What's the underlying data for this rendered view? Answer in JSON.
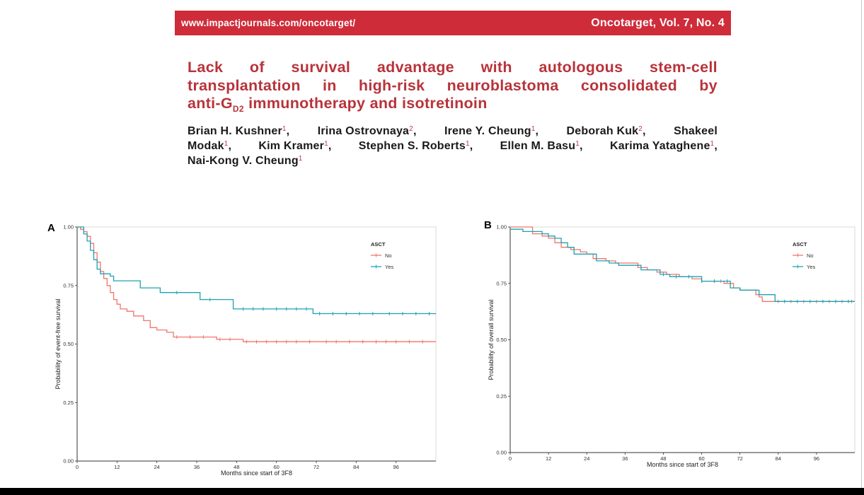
{
  "header": {
    "url": "www.impactjournals.com/oncotarget/",
    "journal": "Oncotarget, Vol. 7, No. 4"
  },
  "title": {
    "line1_words": [
      "Lack",
      "of",
      "survival",
      "advantage",
      "with",
      "autologous",
      "stem-cell"
    ],
    "line2_words": [
      "transplantation",
      "in",
      "high-risk",
      "neuroblastoma",
      "consolidated",
      "by"
    ],
    "line3_pre": "anti-G",
    "line3_sub": "D2",
    "line3_post": " immunotherapy and isotretinoin"
  },
  "authors": {
    "row1": [
      {
        "name": "Brian H. Kushner",
        "aff": "1",
        "sep": ","
      },
      {
        "name": "Irina Ostrovnaya",
        "aff": "2",
        "sep": ","
      },
      {
        "name": "Irene Y. Cheung",
        "aff": "1",
        "sep": ","
      },
      {
        "name": "Deborah Kuk",
        "aff": "2",
        "sep": ","
      },
      {
        "name": "Shakeel",
        "aff": "",
        "sep": ""
      }
    ],
    "row2": [
      {
        "name": "Modak",
        "aff": "1",
        "sep": ","
      },
      {
        "name": "Kim Kramer",
        "aff": "1",
        "sep": ","
      },
      {
        "name": "Stephen S. Roberts",
        "aff": "1",
        "sep": ","
      },
      {
        "name": "Ellen M. Basu",
        "aff": "1",
        "sep": ","
      },
      {
        "name": "Karima Yataghene",
        "aff": "1",
        "sep": ","
      }
    ],
    "row3": [
      {
        "name": "Nai-Kong V. Cheung",
        "aff": "1",
        "sep": ""
      }
    ]
  },
  "colors": {
    "banner": "#cf2c3a",
    "title": "#b8333a",
    "no": "#f0766b",
    "yes": "#1ca3b3"
  },
  "chart_data": [
    {
      "type": "line",
      "panel_label": "A",
      "xlabel": "Months since start of 3F8",
      "ylabel": "Probability of event-free survival",
      "xlim": [
        0,
        108
      ],
      "ylim": [
        0,
        1
      ],
      "x_ticks": [
        "0",
        "12",
        "24",
        "36",
        "48",
        "60",
        "72",
        "84",
        "96"
      ],
      "y_ticks": [
        "0.00",
        "0.25",
        "0.50",
        "0.75",
        "1.00"
      ],
      "legend_title": "ASCT",
      "legend_position": "top-right",
      "series": [
        {
          "name": "No",
          "points": [
            [
              0,
              1
            ],
            [
              1,
              0.99
            ],
            [
              2,
              0.98
            ],
            [
              3,
              0.96
            ],
            [
              4,
              0.93
            ],
            [
              5,
              0.89
            ],
            [
              6,
              0.85
            ],
            [
              7,
              0.81
            ],
            [
              8,
              0.78
            ],
            [
              9,
              0.75
            ],
            [
              10,
              0.72
            ],
            [
              11,
              0.69
            ],
            [
              12,
              0.67
            ],
            [
              13,
              0.65
            ],
            [
              15,
              0.64
            ],
            [
              17,
              0.62
            ],
            [
              20,
              0.6
            ],
            [
              22,
              0.57
            ],
            [
              24,
              0.56
            ],
            [
              27,
              0.55
            ],
            [
              29,
              0.53
            ],
            [
              40,
              0.53
            ],
            [
              42,
              0.52
            ],
            [
              49,
              0.52
            ],
            [
              50,
              0.51
            ],
            [
              108,
              0.51
            ]
          ],
          "censor_x": [
            30,
            34,
            38,
            43,
            46,
            51,
            54,
            57,
            60,
            63,
            66,
            70,
            75,
            78,
            82,
            86,
            90,
            93,
            96,
            100,
            104
          ]
        },
        {
          "name": "Yes",
          "points": [
            [
              0,
              1
            ],
            [
              2,
              0.97
            ],
            [
              3,
              0.94
            ],
            [
              4,
              0.9
            ],
            [
              5,
              0.86
            ],
            [
              6,
              0.82
            ],
            [
              7,
              0.8
            ],
            [
              10,
              0.79
            ],
            [
              11,
              0.77
            ],
            [
              18,
              0.77
            ],
            [
              19,
              0.74
            ],
            [
              24,
              0.74
            ],
            [
              25,
              0.72
            ],
            [
              36,
              0.72
            ],
            [
              37,
              0.69
            ],
            [
              46,
              0.69
            ],
            [
              47,
              0.65
            ],
            [
              70,
              0.65
            ],
            [
              71,
              0.63
            ],
            [
              108,
              0.63
            ]
          ],
          "censor_x": [
            30,
            40,
            50,
            53,
            56,
            60,
            63,
            66,
            69,
            73,
            77,
            81,
            85,
            89,
            94,
            98,
            102,
            106
          ]
        }
      ]
    },
    {
      "type": "line",
      "panel_label": "B",
      "xlabel": "Months since start of 3F8",
      "ylabel": "Probability of overall survival",
      "xlim": [
        0,
        108
      ],
      "ylim": [
        0,
        1
      ],
      "x_ticks": [
        "0",
        "12",
        "24",
        "36",
        "48",
        "60",
        "72",
        "84",
        "96"
      ],
      "y_ticks": [
        "0.00",
        "0.25",
        "0.50",
        "0.75",
        "1.00"
      ],
      "legend_title": "ASCT",
      "legend_position": "top-right",
      "series": [
        {
          "name": "No",
          "points": [
            [
              0,
              1
            ],
            [
              7,
              0.97
            ],
            [
              10,
              0.96
            ],
            [
              12,
              0.95
            ],
            [
              14,
              0.93
            ],
            [
              16,
              0.91
            ],
            [
              19,
              0.9
            ],
            [
              22,
              0.89
            ],
            [
              24,
              0.88
            ],
            [
              26,
              0.86
            ],
            [
              30,
              0.85
            ],
            [
              33,
              0.84
            ],
            [
              38,
              0.84
            ],
            [
              40,
              0.82
            ],
            [
              43,
              0.81
            ],
            [
              46,
              0.8
            ],
            [
              49,
              0.79
            ],
            [
              53,
              0.78
            ],
            [
              57,
              0.77
            ],
            [
              60,
              0.76
            ],
            [
              64,
              0.76
            ],
            [
              67,
              0.75
            ],
            [
              70,
              0.73
            ],
            [
              72,
              0.72
            ],
            [
              76,
              0.72
            ],
            [
              77,
              0.7
            ],
            [
              78,
              0.69
            ],
            [
              79,
              0.67
            ],
            [
              108,
              0.67
            ]
          ],
          "censor_x": [
            60,
            64,
            66,
            84,
            88,
            92,
            96,
            100,
            104,
            107
          ]
        },
        {
          "name": "Yes",
          "points": [
            [
              0,
              0.99
            ],
            [
              4,
              0.98
            ],
            [
              8,
              0.98
            ],
            [
              10,
              0.97
            ],
            [
              12,
              0.96
            ],
            [
              14,
              0.95
            ],
            [
              16,
              0.93
            ],
            [
              18,
              0.91
            ],
            [
              20,
              0.88
            ],
            [
              26,
              0.88
            ],
            [
              27,
              0.85
            ],
            [
              30,
              0.85
            ],
            [
              31,
              0.84
            ],
            [
              34,
              0.83
            ],
            [
              40,
              0.83
            ],
            [
              41,
              0.81
            ],
            [
              46,
              0.81
            ],
            [
              47,
              0.79
            ],
            [
              50,
              0.78
            ],
            [
              59,
              0.78
            ],
            [
              60,
              0.76
            ],
            [
              68,
              0.76
            ],
            [
              69,
              0.73
            ],
            [
              72,
              0.72
            ],
            [
              77,
              0.72
            ],
            [
              78,
              0.7
            ],
            [
              82,
              0.7
            ],
            [
              83,
              0.67
            ],
            [
              108,
              0.67
            ]
          ],
          "censor_x": [
            48,
            52,
            56,
            60,
            64,
            68,
            86,
            90,
            94,
            98,
            102,
            106
          ]
        }
      ]
    }
  ]
}
